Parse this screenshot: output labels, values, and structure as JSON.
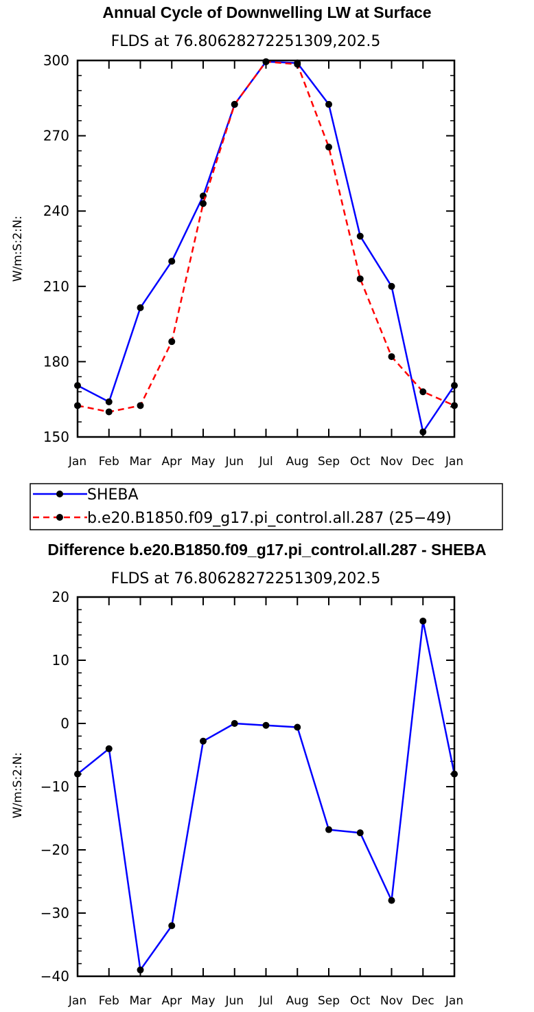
{
  "colors": {
    "sheba": "#0000ff",
    "model": "#ff0000",
    "marker": "#000000",
    "diff": "#0000ff"
  },
  "chart_data": [
    {
      "type": "line",
      "title": "Annual Cycle of Downwelling LW at Surface",
      "subtitle": "FLDS at 76.80628272251309,202.5",
      "ylabel": "W/m:S:2:N:",
      "xlabel": "",
      "categories": [
        "Jan",
        "Feb",
        "Mar",
        "Apr",
        "May",
        "Jun",
        "Jul",
        "Aug",
        "Sep",
        "Oct",
        "Nov",
        "Dec",
        "Jan"
      ],
      "ylim": [
        150,
        300
      ],
      "yticks": [
        150,
        180,
        210,
        240,
        270,
        300
      ],
      "series": [
        {
          "name": "SHEBA",
          "style": "solid",
          "values": [
            170.5,
            164,
            201.5,
            220,
            246,
            282.5,
            299.5,
            299,
            282.5,
            230,
            210,
            152,
            170.5
          ]
        },
        {
          "name": "b.e20.B1850.f09_g17.pi_control.all.287 (25−49)",
          "style": "dashed",
          "values": [
            162.5,
            160,
            162.5,
            188,
            243,
            282.5,
            299.5,
            298.5,
            265.5,
            213,
            182,
            168,
            162.5
          ]
        }
      ]
    },
    {
      "type": "line",
      "title": "Difference b.e20.B1850.f09_g17.pi_control.all.287 - SHEBA",
      "subtitle": "FLDS at 76.80628272251309,202.5",
      "ylabel": "W/m:S:2:N:",
      "xlabel": "",
      "categories": [
        "Jan",
        "Feb",
        "Mar",
        "Apr",
        "May",
        "Jun",
        "Jul",
        "Aug",
        "Sep",
        "Oct",
        "Nov",
        "Dec",
        "Jan"
      ],
      "ylim": [
        -40,
        20
      ],
      "yticks": [
        -40,
        -30,
        -20,
        -10,
        0,
        10,
        20
      ],
      "ytick_labels": [
        "−40",
        "−30",
        "−20",
        "−10",
        "0",
        "10",
        "20"
      ],
      "series": [
        {
          "name": "difference",
          "style": "solid",
          "values": [
            -8,
            -4,
            -39,
            -32,
            -2.8,
            0,
            -0.3,
            -0.6,
            -16.8,
            -17.3,
            -28,
            16.2,
            -8
          ]
        }
      ]
    }
  ]
}
